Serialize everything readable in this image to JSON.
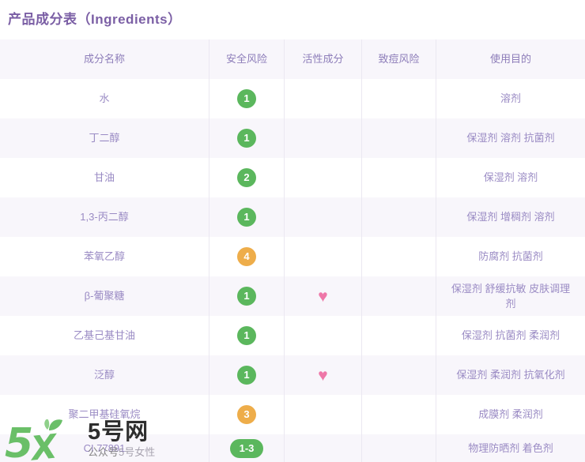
{
  "page": {
    "title": "产品成分表（Ingredients）"
  },
  "table": {
    "columns": [
      {
        "key": "name",
        "label": "成分名称"
      },
      {
        "key": "safety",
        "label": "安全风险"
      },
      {
        "key": "active",
        "label": "活性成分"
      },
      {
        "key": "acne",
        "label": "致痘风险"
      },
      {
        "key": "purpose",
        "label": "使用目的"
      }
    ],
    "rows": [
      {
        "name": "水",
        "safety": "1",
        "risk": "low",
        "active": false,
        "acne": "",
        "purpose": "溶剂"
      },
      {
        "name": "丁二醇",
        "safety": "1",
        "risk": "low",
        "active": false,
        "acne": "",
        "purpose": "保湿剂 溶剂 抗菌剂"
      },
      {
        "name": "甘油",
        "safety": "2",
        "risk": "low",
        "active": false,
        "acne": "",
        "purpose": "保湿剂 溶剂"
      },
      {
        "name": "1,3-丙二醇",
        "safety": "1",
        "risk": "low",
        "active": false,
        "acne": "",
        "purpose": "保湿剂 增稠剂 溶剂"
      },
      {
        "name": "苯氧乙醇",
        "safety": "4",
        "risk": "medium",
        "active": false,
        "acne": "",
        "purpose": "防腐剂 抗菌剂"
      },
      {
        "name": "β-葡聚糖",
        "safety": "1",
        "risk": "low",
        "active": true,
        "acne": "",
        "purpose": "保湿剂 舒缓抗敏 皮肤调理剂"
      },
      {
        "name": "乙基己基甘油",
        "safety": "1",
        "risk": "low",
        "active": false,
        "acne": "",
        "purpose": "保湿剂 抗菌剂 柔润剂"
      },
      {
        "name": "泛醇",
        "safety": "1",
        "risk": "low",
        "active": true,
        "acne": "",
        "purpose": "保湿剂 柔润剂 抗氧化剂"
      },
      {
        "name": "聚二甲基硅氧烷",
        "safety": "3",
        "risk": "medium",
        "active": false,
        "acne": "",
        "purpose": "成膜剂 柔润剂"
      },
      {
        "name": "CI 77891",
        "safety": "1-3",
        "risk": "low",
        "active": false,
        "acne": "",
        "purpose": "物理防晒剂 着色剂"
      }
    ]
  },
  "icons": {
    "active_heart": "♥"
  },
  "watermark": {
    "brand": "5号网",
    "subtext_prefix": "公众号",
    "subtext_overlap": "5号女性"
  },
  "colors": {
    "title_purple": "#7b5fa5",
    "header_text": "#8d7db9",
    "cell_text": "#9a8bc4",
    "row_alt_bg": "#f8f6fb",
    "divider": "#ebe8f1",
    "safety_low_green": "#5bb75d",
    "safety_mid_orange": "#eead4a",
    "heart_pink": "#ee77a8",
    "watermark_green": "#6abf68",
    "watermark_dark": "#2e2e2e"
  }
}
